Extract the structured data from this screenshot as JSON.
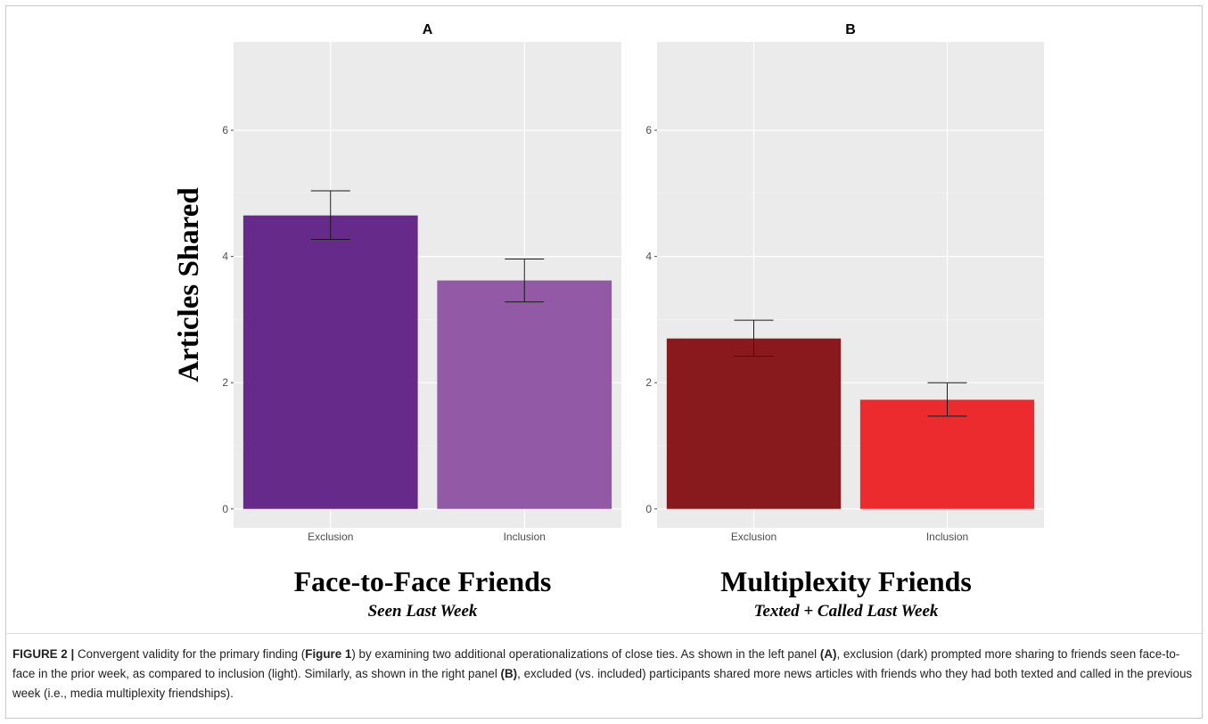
{
  "chart_data": [
    {
      "type": "bar",
      "panel_label": "A",
      "ylabel": "Articles Shared",
      "categories": [
        "Exclusion",
        "Inclusion"
      ],
      "values": [
        4.65,
        3.62
      ],
      "error_bars": [
        [
          4.27,
          5.04
        ],
        [
          3.28,
          3.96
        ]
      ],
      "colors": [
        "#652A8A",
        "#925AA6"
      ],
      "ylim": [
        -0.3,
        7.4
      ],
      "yticks": [
        "0",
        "2",
        "4",
        "6"
      ],
      "title": "Face-to-Face Friends",
      "subtitle": "Seen Last Week",
      "grid": true
    },
    {
      "type": "bar",
      "panel_label": "B",
      "ylabel": "",
      "categories": [
        "Exclusion",
        "Inclusion"
      ],
      "values": [
        2.7,
        1.73
      ],
      "error_bars": [
        [
          2.42,
          2.99
        ],
        [
          1.47,
          2.0
        ]
      ],
      "colors": [
        "#881A1D",
        "#EC2B2E"
      ],
      "ylim": [
        -0.3,
        7.4
      ],
      "yticks": [
        "0",
        "2",
        "4",
        "6"
      ],
      "title": "Multiplexity Friends",
      "subtitle": "Texted + Called Last Week",
      "grid": true
    }
  ],
  "caption": {
    "figure_label": "FIGURE 2",
    "separator": "|",
    "text_1": "Convergent validity for the primary finding (",
    "ref_figure": "Figure 1",
    "text_2": ") by examining two additional operationalizations of close ties. As shown in the left panel ",
    "ref_a": "(A)",
    "text_3": ", exclusion (dark) prompted more sharing to friends seen face-to-face in the prior week, as compared to inclusion (light). Similarly, as shown in the right panel ",
    "ref_b": "(B)",
    "text_4": ", excluded (vs. included) participants shared more news articles with friends who they had both texted and called in the previous week (i.e., media multiplexity friendships)."
  }
}
